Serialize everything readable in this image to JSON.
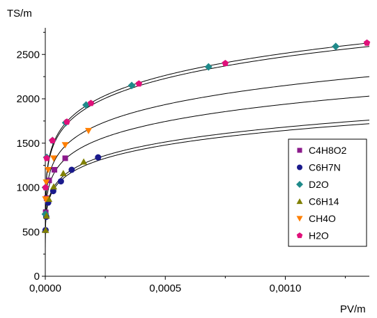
{
  "chart_data": {
    "type": "scatter",
    "title": "",
    "xlabel": "PV/m",
    "ylabel": "TS/m",
    "xlim": [
      0,
      0.00135
    ],
    "ylim": [
      0,
      2800
    ],
    "x_ticks": [
      0,
      0.0005,
      0.001
    ],
    "x_tick_labels": [
      "0,0000",
      "0,0005",
      "0,0010"
    ],
    "y_ticks": [
      0,
      500,
      1000,
      1500,
      2000,
      2500
    ],
    "y_tick_labels": [
      "0",
      "500",
      "1000",
      "1500",
      "2000",
      "2500"
    ],
    "grid": false,
    "legend_position": "right",
    "series": [
      {
        "name": "C4H8O2",
        "marker": "square",
        "color": "#8b1a8b",
        "x": [
          1.8e-06,
          5.5e-06,
          1.6e-05,
          3.8e-05,
          8.3e-05
        ],
        "y": [
          720,
          880,
          1080,
          1200,
          1330
        ]
      },
      {
        "name": "C6H7N",
        "marker": "circle",
        "color": "#1a1a8c",
        "x": [
          1.2e-06,
          4e-06,
          1.2e-05,
          3.3e-05,
          6.5e-05,
          0.00011,
          0.00022
        ],
        "y": [
          520,
          670,
          830,
          960,
          1070,
          1200,
          1340
        ]
      },
      {
        "name": "D2O",
        "marker": "diamond",
        "color": "#1f8a8a",
        "x": [
          2e-07,
          1.2e-06,
          6e-06,
          3e-05,
          8.5e-05,
          0.00017,
          0.00036,
          0.00068,
          0.00121
        ],
        "y": [
          700,
          1000,
          1340,
          1530,
          1730,
          1930,
          2150,
          2360,
          2590
        ]
      },
      {
        "name": "C6H14",
        "marker": "triangle-up",
        "color": "#808000",
        "x": [
          1.5e-06,
          5e-06,
          1.5e-05,
          3.5e-05,
          7.5e-05,
          0.00016
        ],
        "y": [
          520,
          680,
          870,
          1010,
          1160,
          1290
        ]
      },
      {
        "name": "CH4O",
        "marker": "triangle-down",
        "color": "#ff7f00",
        "x": [
          1e-06,
          4e-06,
          1.2e-05,
          3.5e-05,
          8.3e-05,
          0.00018
        ],
        "y": [
          870,
          1060,
          1200,
          1330,
          1480,
          1640
        ]
      },
      {
        "name": "H2O",
        "marker": "pentagon",
        "color": "#e0107a",
        "x": [
          1.2e-06,
          6e-06,
          3e-05,
          9e-05,
          0.00019,
          0.00039,
          0.00075,
          0.00134
        ],
        "y": [
          1000,
          1330,
          1530,
          1740,
          1950,
          2170,
          2400,
          2630
        ]
      }
    ],
    "fit_curves": [
      {
        "color": "#000000",
        "a": 2630,
        "b": 2730
      },
      {
        "color": "#000000",
        "a": 2590,
        "b": 2690
      },
      {
        "color": "#000000",
        "a": 2250,
        "b": 2350
      },
      {
        "color": "#000000",
        "a": 2030,
        "b": 2130
      },
      {
        "color": "#000000",
        "a": 1760,
        "b": 1840
      },
      {
        "color": "#000000",
        "a": 1720,
        "b": 1800
      }
    ]
  }
}
